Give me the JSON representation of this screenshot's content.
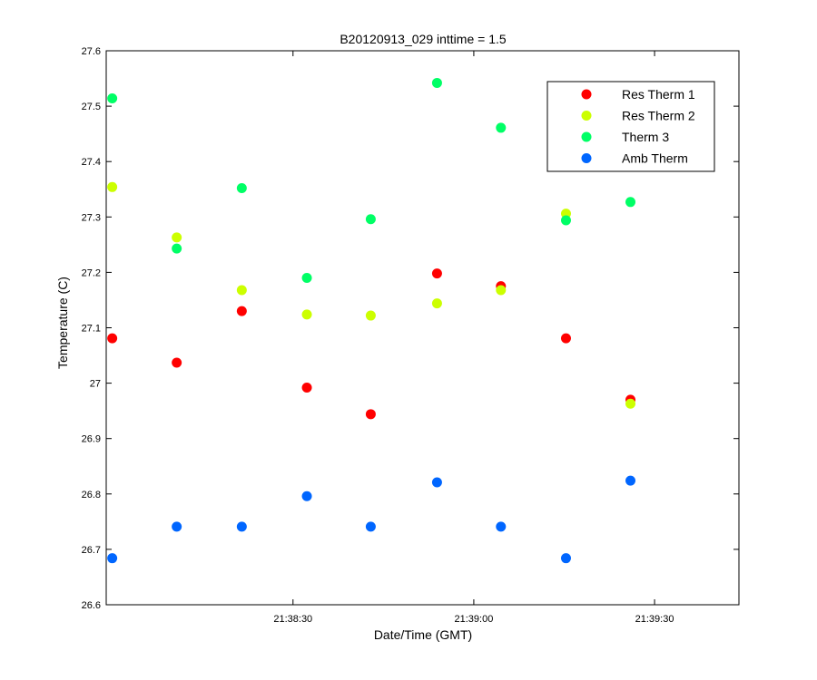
{
  "chart_data": {
    "type": "scatter",
    "title": "B20120913_029 inttime = 1.5",
    "xlabel": "Date/Time (GMT)",
    "ylabel": "Temperature (C)",
    "x_unit": "time of day (GMT, seconds)",
    "xlim": [
      "21:37:59",
      "21:39:44"
    ],
    "ylim": [
      26.6,
      27.6
    ],
    "x_ticks": [
      "21:38:30",
      "21:39:00",
      "21:39:30"
    ],
    "y_ticks": [
      "26.6",
      "26.7",
      "26.8",
      "26.9",
      "27",
      "27.1",
      "27.2",
      "27.3",
      "27.4",
      "27.5",
      "27.6"
    ],
    "x": [
      "21:38:00",
      "21:38:10.7",
      "21:38:21.5",
      "21:38:32.3",
      "21:38:42.9",
      "21:38:53.9",
      "21:39:04.5",
      "21:39:15.3",
      "21:39:26"
    ],
    "series": [
      {
        "name": "Res Therm 1",
        "color": "#ff0000",
        "values": [
          27.081,
          27.037,
          27.13,
          26.992,
          26.944,
          27.198,
          27.175,
          27.081,
          26.97
        ]
      },
      {
        "name": "Res Therm 2",
        "color": "#ccff00",
        "values": [
          27.354,
          27.263,
          27.168,
          27.124,
          27.122,
          27.144,
          27.168,
          27.306,
          26.963
        ]
      },
      {
        "name": "Therm 3",
        "color": "#00ff66",
        "values": [
          27.514,
          27.243,
          27.352,
          27.19,
          27.296,
          27.542,
          27.461,
          27.294,
          27.327
        ]
      },
      {
        "name": "Amb Therm",
        "color": "#0066ff",
        "values": [
          26.684,
          26.741,
          26.741,
          26.796,
          26.741,
          26.821,
          26.741,
          26.684,
          26.824
        ]
      }
    ],
    "grid": false,
    "legend_position": "top-right"
  }
}
